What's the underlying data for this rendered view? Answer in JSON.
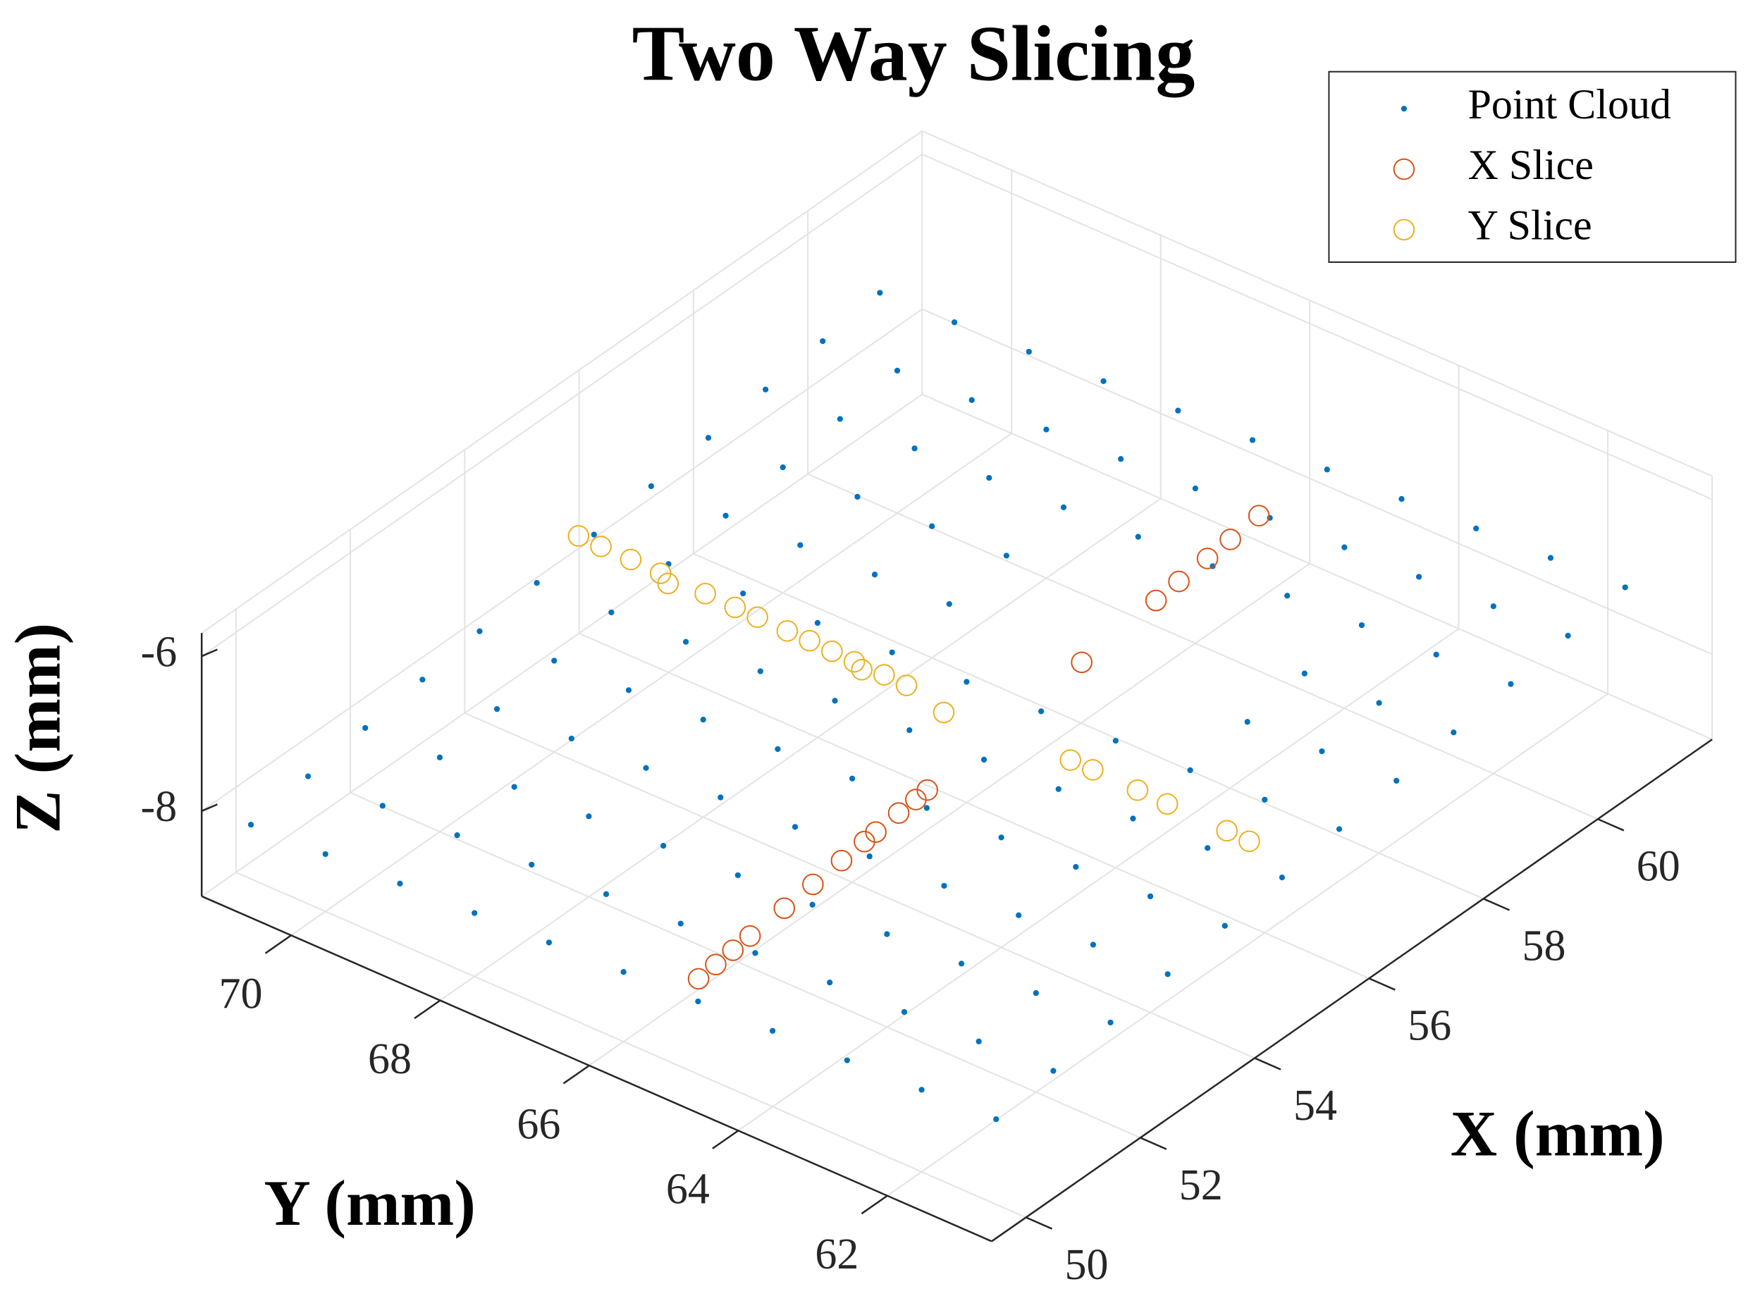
{
  "chart_data": {
    "type": "scatter3d",
    "title": "Two Way Slicing",
    "xlabel": "X (mm)",
    "ylabel": "Y (mm)",
    "zlabel": "Z (mm)",
    "xlim": [
      49.4,
      62.0
    ],
    "ylim": [
      60.6,
      71.2
    ],
    "zlim": [
      -9.1,
      -5.7
    ],
    "xticks": [
      50,
      52,
      54,
      56,
      58,
      60
    ],
    "yticks": [
      62,
      64,
      66,
      68,
      70
    ],
    "zticks": [
      -8,
      -6
    ],
    "grid": true,
    "legend": "northeast",
    "series": [
      {
        "name": "Point Cloud",
        "color": "#0072bd",
        "marker": "dot",
        "x": [
          50,
          51,
          52,
          53,
          54,
          55,
          56,
          57,
          58,
          59,
          60,
          61,
          50,
          51,
          52,
          53,
          54,
          55,
          56,
          57,
          58,
          59,
          60,
          61,
          50,
          51,
          52,
          53,
          54,
          55,
          56,
          57,
          58,
          59,
          60,
          61,
          50,
          51,
          52,
          53,
          54,
          55,
          56,
          59,
          60,
          61,
          50,
          51,
          52,
          53,
          54,
          55,
          56,
          59,
          60,
          61,
          50,
          51,
          52,
          53,
          54,
          55,
          56,
          59,
          60,
          61,
          50,
          51,
          52,
          53,
          54,
          55,
          56,
          57,
          58,
          59,
          60,
          61,
          50,
          51,
          52,
          53,
          54,
          55,
          56,
          57,
          58,
          59,
          60,
          61,
          50,
          51,
          52,
          53,
          54,
          55,
          56,
          57,
          58,
          59,
          60,
          61,
          50,
          51,
          52,
          53,
          54,
          55,
          56,
          57,
          58,
          59,
          60,
          61,
          50,
          51,
          52,
          53,
          54,
          55,
          56,
          57,
          58,
          59,
          60,
          61
        ],
        "y": [
          61,
          61,
          61,
          61,
          61,
          61,
          61,
          61,
          61,
          61,
          61,
          61,
          62,
          62,
          62,
          62,
          62,
          62,
          62,
          62,
          62,
          62,
          62,
          62,
          63,
          63,
          63,
          63,
          63,
          63,
          63,
          63,
          63,
          63,
          63,
          63,
          64,
          64,
          64,
          64,
          64,
          64,
          64,
          64,
          64,
          64,
          65,
          65,
          65,
          65,
          65,
          65,
          65,
          65,
          65,
          65,
          66,
          66,
          66,
          66,
          66,
          66,
          66,
          66,
          66,
          66,
          67,
          67,
          67,
          67,
          67,
          67,
          67,
          67,
          67,
          67,
          67,
          67,
          68,
          68,
          68,
          68,
          68,
          68,
          68,
          68,
          68,
          68,
          68,
          68,
          69,
          69,
          69,
          69,
          69,
          69,
          69,
          69,
          69,
          69,
          69,
          69,
          70,
          70,
          70,
          70,
          70,
          70,
          70,
          70,
          70,
          70,
          70,
          70,
          71,
          71,
          71,
          71,
          71,
          71,
          71,
          71,
          71,
          71,
          71,
          71
        ],
        "z": [
          -8.0,
          -7.89,
          -7.78,
          -7.67,
          -7.56,
          -7.45,
          -7.34,
          -7.23,
          -7.12,
          -7.01,
          -6.9,
          -6.79,
          -8.04,
          -7.93,
          -7.82,
          -7.71,
          -7.6,
          -7.49,
          -7.38,
          -7.27,
          -7.16,
          -7.05,
          -6.94,
          -6.83,
          -8.08,
          -7.97,
          -7.86,
          -7.75,
          -7.64,
          -7.53,
          -7.42,
          -7.31,
          -7.2,
          -7.09,
          -6.98,
          -6.87,
          -8.12,
          -8.01,
          -7.9,
          -7.79,
          -7.68,
          -7.57,
          -7.46,
          -7.13,
          -7.02,
          -6.91,
          -8.16,
          -8.05,
          -7.94,
          -7.83,
          -7.72,
          -7.61,
          -7.5,
          -7.17,
          -7.06,
          -6.95,
          -8.2,
          -8.09,
          -7.98,
          -7.87,
          -7.76,
          -7.65,
          -7.54,
          -7.21,
          -7.1,
          -6.99,
          -8.24,
          -8.13,
          -8.02,
          -7.91,
          -7.8,
          -7.69,
          -7.58,
          -7.47,
          -7.36,
          -7.25,
          -7.14,
          -7.03,
          -8.28,
          -8.17,
          -8.06,
          -7.95,
          -7.84,
          -7.73,
          -7.62,
          -7.51,
          -7.4,
          -7.29,
          -7.18,
          -7.07,
          -8.32,
          -8.21,
          -8.1,
          -7.99,
          -7.88,
          -7.77,
          -7.66,
          -7.55,
          -7.44,
          -7.33,
          -7.22,
          -7.11,
          -8.36,
          -8.25,
          -8.14,
          -8.03,
          -7.92,
          -7.81,
          -7.7,
          -7.59,
          -7.48,
          -7.37,
          -7.26,
          -7.15,
          -8.4,
          -8.29,
          -8.18,
          -8.07,
          -7.96,
          -7.85,
          -7.74,
          -7.63,
          -7.52,
          -7.41,
          -7.3,
          -7.19
        ]
      },
      {
        "name": "X Slice",
        "color": "#d95319",
        "marker": "circle",
        "x": [
          50.4,
          50.7,
          51.0,
          51.3,
          51.9,
          52.4,
          52.9,
          53.3,
          53.5,
          53.9,
          54.2,
          54.4,
          57.1,
          58.4,
          58.8,
          59.3,
          59.7,
          60.2
        ],
        "y": [
          65.3,
          65.3,
          65.3,
          65.3,
          65.3,
          65.3,
          65.3,
          65.3,
          65.3,
          65.3,
          65.3,
          65.3,
          65.3,
          65.3,
          65.3,
          65.3,
          65.3,
          65.3
        ],
        "z": [
          -8.2,
          -8.17,
          -8.14,
          -8.11,
          -8.06,
          -8.01,
          -7.96,
          -7.92,
          -7.9,
          -7.86,
          -7.84,
          -7.82,
          -7.56,
          -7.43,
          -7.39,
          -7.35,
          -7.31,
          -7.26
        ]
      },
      {
        "name": "Y Slice",
        "color": "#edb120",
        "marker": "circle",
        "x": [
          55.6,
          55.6,
          55.6,
          55.6,
          55.6,
          55.6,
          55.6,
          55.6,
          55.6,
          55.6,
          55.6,
          55.6,
          55.6,
          55.6,
          55.6,
          55.6,
          55.6,
          55.6,
          55.6,
          55.6,
          55.6,
          55.6
        ],
        "y": [
          70.9,
          70.6,
          70.2,
          69.8,
          69.7,
          69.2,
          68.8,
          68.5,
          68.1,
          67.8,
          67.5,
          67.2,
          67.1,
          66.8,
          66.5,
          66.0,
          64.3,
          64.0,
          63.4,
          63.0,
          62.2,
          61.9
        ],
        "z": [
          -7.51,
          -7.52,
          -7.52,
          -7.53,
          -7.62,
          -7.54,
          -7.55,
          -7.55,
          -7.56,
          -7.56,
          -7.57,
          -7.58,
          -7.64,
          -7.58,
          -7.59,
          -7.73,
          -7.63,
          -7.63,
          -7.64,
          -7.65,
          -7.66,
          -7.67
        ]
      }
    ]
  }
}
